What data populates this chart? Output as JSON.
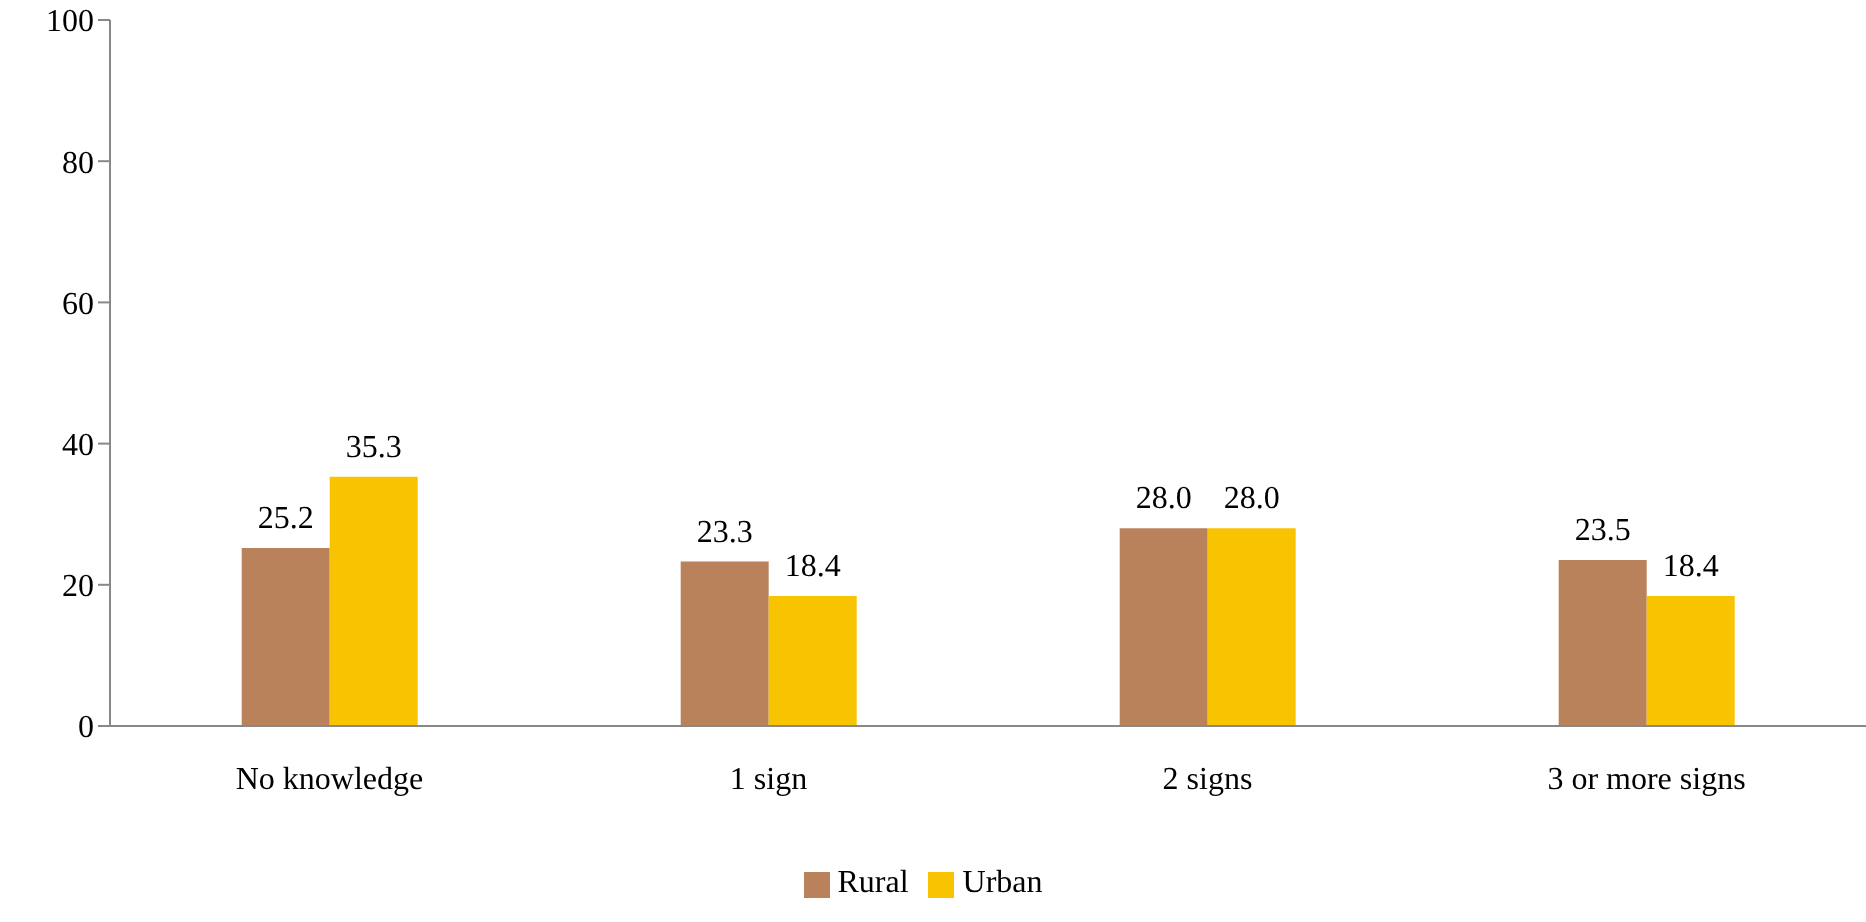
{
  "chart_data": {
    "type": "bar",
    "categories": [
      "No knowledge",
      "1 sign",
      "2 signs",
      "3 or more signs"
    ],
    "series": [
      {
        "name": "Rural",
        "color": "#b9825b",
        "values": [
          25.2,
          23.3,
          28.0,
          23.5
        ],
        "value_labels": [
          "25.2",
          "23.3",
          "28.0",
          "23.5"
        ]
      },
      {
        "name": "Urban",
        "color": "#f8c300",
        "values": [
          35.3,
          18.4,
          28.0,
          18.4
        ],
        "value_labels": [
          "35.3",
          "18.4",
          "28.0",
          "18.4"
        ]
      }
    ],
    "ylim": [
      0,
      100
    ],
    "yticks": [
      0,
      20,
      40,
      60,
      80,
      100
    ],
    "grid": false,
    "legend": "bottom"
  }
}
